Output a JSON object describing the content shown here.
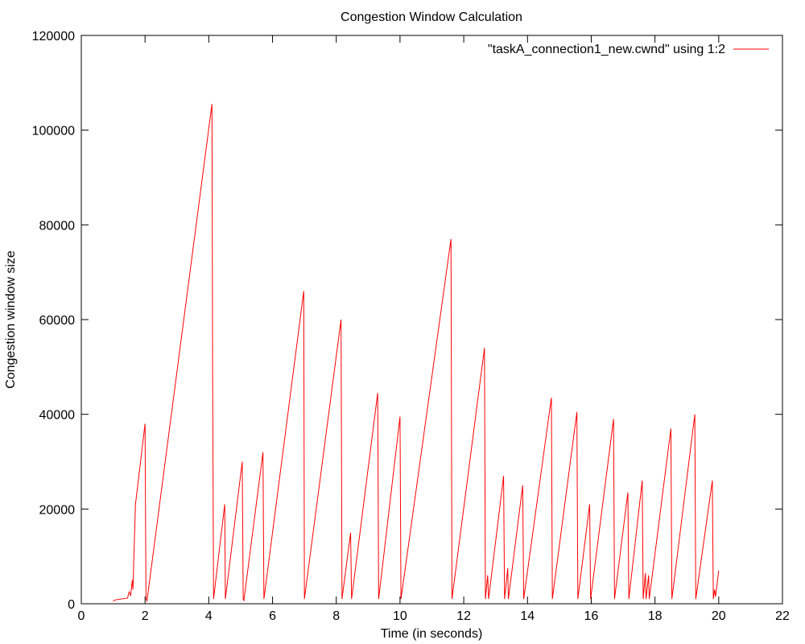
{
  "chart_data": {
    "type": "line",
    "title": "Congestion Window Calculation",
    "xlabel": "Time (in seconds)",
    "ylabel": "Congestion window size",
    "xlim": [
      0,
      22
    ],
    "ylim": [
      0,
      120000
    ],
    "xticks": [
      0,
      2,
      4,
      6,
      8,
      10,
      12,
      14,
      16,
      18,
      20,
      22
    ],
    "yticks": [
      0,
      20000,
      40000,
      60000,
      80000,
      100000,
      120000
    ],
    "grid": false,
    "legend_position": "top-right",
    "series": [
      {
        "name": "\"taskA_connection1_new.cwnd\" using 1:2",
        "color": "#ff0000",
        "points": [
          [
            1.0,
            500
          ],
          [
            1.05,
            800
          ],
          [
            1.45,
            1200
          ],
          [
            1.5,
            2500
          ],
          [
            1.55,
            1800
          ],
          [
            1.6,
            5000
          ],
          [
            1.62,
            3000
          ],
          [
            1.65,
            10000
          ],
          [
            1.7,
            21000
          ],
          [
            2.0,
            38000
          ],
          [
            2.03,
            1000
          ],
          [
            2.06,
            600
          ],
          [
            4.1,
            105500
          ],
          [
            4.12,
            50000
          ],
          [
            4.15,
            1000
          ],
          [
            4.5,
            21000
          ],
          [
            4.52,
            1000
          ],
          [
            5.05,
            30000
          ],
          [
            5.08,
            1000
          ],
          [
            5.1,
            600
          ],
          [
            5.7,
            32000
          ],
          [
            5.73,
            1000
          ],
          [
            6.98,
            66000
          ],
          [
            7.0,
            1000
          ],
          [
            8.15,
            60000
          ],
          [
            8.18,
            1000
          ],
          [
            8.45,
            15000
          ],
          [
            8.48,
            1000
          ],
          [
            9.3,
            44500
          ],
          [
            9.33,
            1000
          ],
          [
            10.0,
            39500
          ],
          [
            10.03,
            1000
          ],
          [
            11.6,
            77000
          ],
          [
            11.63,
            1000
          ],
          [
            12.65,
            54000
          ],
          [
            12.68,
            1000
          ],
          [
            12.75,
            6000
          ],
          [
            12.78,
            1000
          ],
          [
            13.25,
            27000
          ],
          [
            13.28,
            1000
          ],
          [
            13.38,
            7500
          ],
          [
            13.4,
            1000
          ],
          [
            13.85,
            25000
          ],
          [
            13.88,
            1000
          ],
          [
            14.75,
            43500
          ],
          [
            14.78,
            1000
          ],
          [
            15.55,
            40500
          ],
          [
            15.58,
            1000
          ],
          [
            15.95,
            21000
          ],
          [
            15.98,
            1000
          ],
          [
            16.7,
            39000
          ],
          [
            16.73,
            1000
          ],
          [
            17.15,
            23500
          ],
          [
            17.18,
            1000
          ],
          [
            17.6,
            26000
          ],
          [
            17.63,
            1000
          ],
          [
            17.7,
            6500
          ],
          [
            17.72,
            1000
          ],
          [
            17.8,
            6000
          ],
          [
            17.82,
            1000
          ],
          [
            18.5,
            37000
          ],
          [
            18.53,
            1000
          ],
          [
            19.25,
            40000
          ],
          [
            19.28,
            1000
          ],
          [
            19.8,
            26000
          ],
          [
            19.83,
            1000
          ],
          [
            19.87,
            3000
          ],
          [
            19.9,
            1500
          ],
          [
            20.0,
            7000
          ]
        ]
      }
    ]
  }
}
